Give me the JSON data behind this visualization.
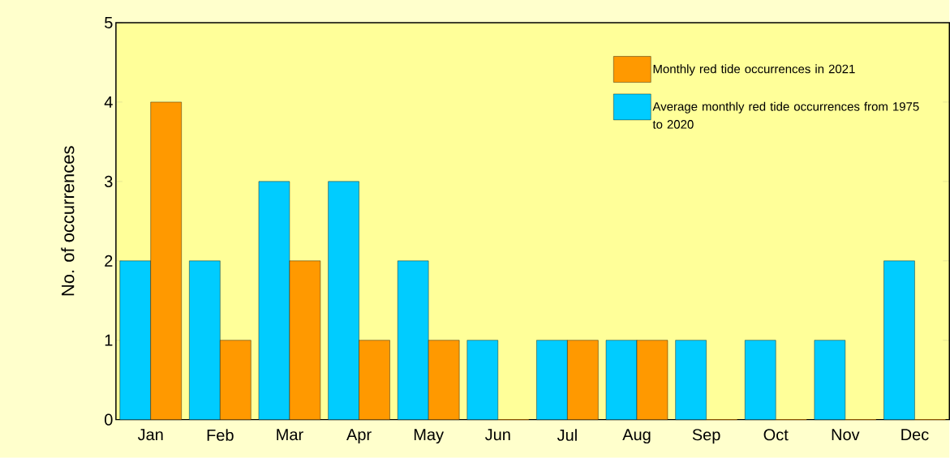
{
  "chart_data": {
    "type": "bar",
    "ylabel": "No. of occurrences",
    "categories": [
      "Jan",
      "Feb",
      "Mar",
      "Apr",
      "May",
      "Jun",
      "Jul",
      "Aug",
      "Sep",
      "Oct",
      "Nov",
      "Dec"
    ],
    "series": [
      {
        "name": "Average monthly red tide occurrences from 1975 to 2020",
        "color": "#00ccff",
        "values": [
          2,
          2,
          3,
          3,
          2,
          1,
          1,
          1,
          1,
          1,
          1,
          2
        ]
      },
      {
        "name": "Monthly red tide occurrences in 2021",
        "color": "#ff9900",
        "values": [
          4,
          1,
          2,
          1,
          1,
          0,
          1,
          1,
          0,
          0,
          0,
          0
        ]
      }
    ],
    "ylim": [
      0,
      5
    ],
    "yticks": [
      0,
      1,
      2,
      3,
      4,
      5
    ],
    "grid": false,
    "legend": "top right"
  }
}
